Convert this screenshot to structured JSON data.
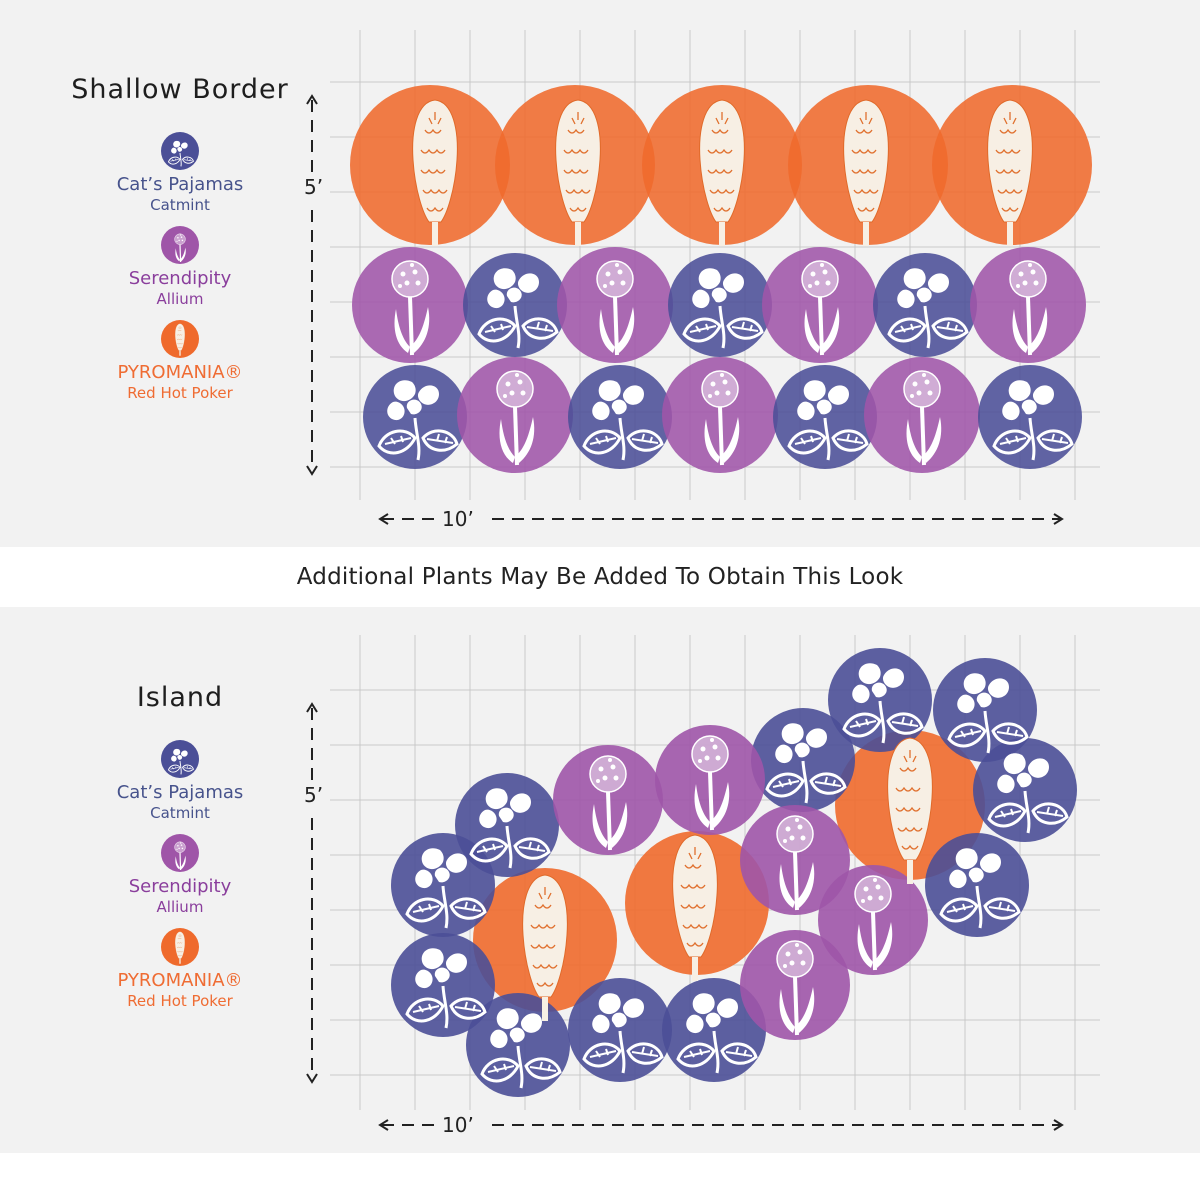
{
  "legend": {
    "catmint": {
      "name": "Cat’s Pajamas",
      "type": "Catmint",
      "icon": "catmint-icon",
      "color": "#4b4f97"
    },
    "allium": {
      "name": "Serendipity",
      "type": "Allium",
      "icon": "allium-icon",
      "color": "#9f55a8"
    },
    "poker": {
      "name": "PYROMANIA®",
      "type": "Red Hot Poker",
      "icon": "red-hot-poker-icon",
      "color": "#ef6a2c"
    }
  },
  "shallow": {
    "title": "Shallow Border",
    "depth": "5’",
    "width": "10’"
  },
  "divider": "Additional Plants May Be Added To Obtain This Look",
  "island": {
    "title": "Island",
    "depth": "5’",
    "width": "10’"
  },
  "colors": {
    "panel": "#f2f2f2",
    "grid": "#c8c8c8",
    "catmint": "#4b4f97",
    "allium": "#9f55a8",
    "poker": "#ef6a2c",
    "cream": "#f7efe4"
  }
}
